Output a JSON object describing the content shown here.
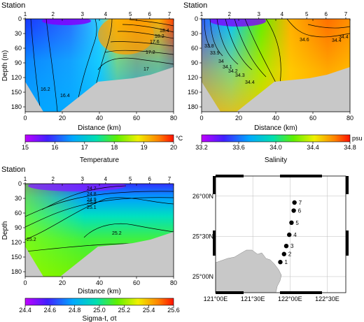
{
  "chart_data": [
    {
      "type": "heatmap",
      "title": "Station",
      "xlabel": "Distance (km)",
      "ylabel": "Depth (m)",
      "xlim": [
        0,
        80
      ],
      "ylim": [
        190,
        0
      ],
      "xticks": [
        "0",
        "20",
        "40",
        "60",
        "80"
      ],
      "yticks": [
        "0",
        "30",
        "60",
        "90",
        "120",
        "150",
        "180"
      ],
      "stations": [
        "1",
        "2",
        "3",
        "4",
        "5",
        "6",
        "7"
      ],
      "contour_labels": [
        "16.2",
        "16.4",
        "17",
        "17.2",
        "17.6",
        "18.2",
        "18.4"
      ],
      "colorbar": {
        "label": "Temperature",
        "unit": "°C",
        "ticks": [
          "15",
          "16",
          "17",
          "18",
          "19",
          "20"
        ]
      }
    },
    {
      "type": "heatmap",
      "title": "Station",
      "xlabel": "Distance (km)",
      "ylabel": "",
      "xlim": [
        0,
        80
      ],
      "ylim": [
        190,
        0
      ],
      "xticks": [
        "0",
        "20",
        "40",
        "60",
        "80"
      ],
      "yticks": [
        "0",
        "30",
        "60",
        "90",
        "120",
        "150",
        "180"
      ],
      "stations": [
        "1",
        "2",
        "3",
        "4",
        "5",
        "6",
        "7"
      ],
      "contour_labels": [
        "33.8",
        "33.9",
        "34",
        "34.1",
        "34.2",
        "34.3",
        "34.4",
        "34.6"
      ],
      "colorbar": {
        "label": "Salinity",
        "unit": "psu",
        "ticks": [
          "33.2",
          "33.6",
          "34.0",
          "34.4",
          "34.8"
        ]
      }
    },
    {
      "type": "heatmap",
      "title": "Station",
      "xlabel": "Distance (km)",
      "ylabel": "Depth",
      "xlim": [
        0,
        80
      ],
      "ylim": [
        190,
        0
      ],
      "xticks": [
        "0",
        "20",
        "40",
        "60",
        "80"
      ],
      "yticks": [
        "0",
        "30",
        "60",
        "90",
        "120",
        "150",
        "180"
      ],
      "stations": [
        "1",
        "2",
        "3",
        "4",
        "5",
        "6",
        "7"
      ],
      "contour_labels": [
        "25.2",
        "25.1",
        "24.7",
        "24.8",
        "24.9",
        "25.2",
        "25.2"
      ],
      "colorbar": {
        "label": "Sigma-t, σt",
        "unit": "",
        "ticks": [
          "24.4",
          "24.6",
          "24.8",
          "25.0",
          "25.2",
          "25.4",
          "25.6"
        ]
      }
    }
  ],
  "map": {
    "lon_ticks": [
      "121°00E",
      "121°30E",
      "122°00E",
      "122°30E"
    ],
    "lat_ticks": [
      "26°00N",
      "25°30N",
      "25°00N"
    ],
    "xlim": [
      121.0,
      122.75
    ],
    "ylim": [
      24.8,
      26.25
    ],
    "stations": [
      {
        "label": "1",
        "lon": 121.87,
        "lat": 25.18
      },
      {
        "label": "2",
        "lon": 121.92,
        "lat": 25.28
      },
      {
        "label": "3",
        "lon": 121.95,
        "lat": 25.38
      },
      {
        "label": "4",
        "lon": 121.99,
        "lat": 25.52
      },
      {
        "label": "5",
        "lon": 122.02,
        "lat": 25.67
      },
      {
        "label": "6",
        "lon": 122.05,
        "lat": 25.82
      },
      {
        "label": "7",
        "lon": 122.06,
        "lat": 25.92
      }
    ]
  },
  "colors": {
    "land": "#c8c8c8",
    "contour": "#000000",
    "station_dot": "#000000"
  }
}
